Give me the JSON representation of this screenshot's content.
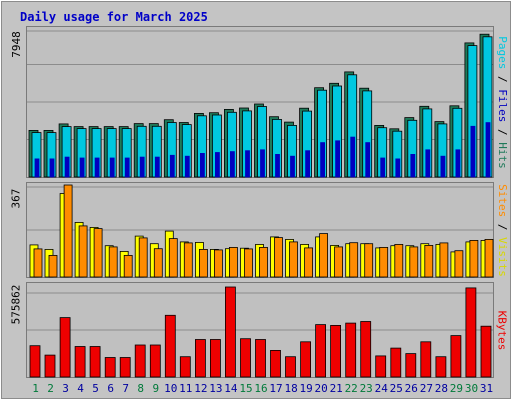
{
  "title": "Daily usage for March 2025",
  "panels": {
    "top": {
      "ymax_label": "7948",
      "legend": {
        "pages": "Pages",
        "sep1": " / ",
        "files": "Files",
        "sep2": " / ",
        "hits": "Hits"
      }
    },
    "mid": {
      "ymax_label": "367",
      "legend": {
        "sites": "Sites",
        "sep": " / ",
        "visits": "Visits"
      }
    },
    "bot": {
      "ymax_label": "575862",
      "legend": {
        "kbytes": "KBytes"
      }
    }
  },
  "colors": {
    "hits": "#1f7a5a",
    "files": "#00c8e0",
    "pages": "#0000c0",
    "visits": "#ffff00",
    "sites": "#ff8c00",
    "kbytes": "#ee0000",
    "weekday_label": "#0000a0",
    "weekend_label": "#007a3a",
    "legend_sep": "#000000",
    "grid": "#8c8c8c"
  },
  "chart_data": [
    {
      "type": "bar",
      "title": "Daily usage for March 2025",
      "categories": [
        "1",
        "2",
        "3",
        "4",
        "5",
        "6",
        "7",
        "8",
        "9",
        "10",
        "11",
        "12",
        "13",
        "14",
        "15",
        "16",
        "17",
        "18",
        "19",
        "20",
        "21",
        "22",
        "23",
        "24",
        "25",
        "26",
        "27",
        "28",
        "29",
        "30",
        "31"
      ],
      "weekend_days": [
        "1",
        "2",
        "8",
        "9",
        "15",
        "16",
        "22",
        "23",
        "29",
        "30"
      ],
      "ylim": [
        0,
        7948
      ],
      "series": [
        {
          "name": "Hits",
          "values": [
            2570,
            2570,
            2930,
            2780,
            2780,
            2780,
            2780,
            2950,
            2950,
            3160,
            3010,
            3510,
            3550,
            3730,
            3810,
            4030,
            3330,
            3030,
            3800,
            4930,
            5170,
            5800,
            4900,
            2850,
            2660,
            3280,
            3900,
            3060,
            3930,
            7400,
            7880
          ]
        },
        {
          "name": "Files",
          "values": [
            2450,
            2450,
            2780,
            2670,
            2670,
            2670,
            2670,
            2800,
            2800,
            3010,
            2890,
            3380,
            3420,
            3570,
            3650,
            3890,
            3180,
            2850,
            3640,
            4790,
            5020,
            5640,
            4750,
            2720,
            2530,
            3130,
            3760,
            2930,
            3790,
            7250,
            7740
          ]
        },
        {
          "name": "Pages",
          "values": [
            1000,
            1000,
            1100,
            1050,
            1050,
            1050,
            1050,
            1100,
            1100,
            1200,
            1150,
            1300,
            1350,
            1400,
            1450,
            1500,
            1250,
            1150,
            1450,
            1900,
            2000,
            2200,
            1900,
            1050,
            1000,
            1250,
            1500,
            1150,
            1500,
            2800,
            3000
          ]
        }
      ]
    },
    {
      "type": "bar",
      "categories": [
        "1",
        "2",
        "3",
        "4",
        "5",
        "6",
        "7",
        "8",
        "9",
        "10",
        "11",
        "12",
        "13",
        "14",
        "15",
        "16",
        "17",
        "18",
        "19",
        "20",
        "21",
        "22",
        "23",
        "24",
        "25",
        "26",
        "27",
        "28",
        "29",
        "30",
        "31"
      ],
      "ylim": [
        0,
        367
      ],
      "series": [
        {
          "name": "Visits",
          "values": [
            128,
            110,
            333,
            218,
            198,
            125,
            102,
            163,
            133,
            183,
            140,
            138,
            110,
            113,
            115,
            130,
            160,
            150,
            130,
            160,
            126,
            133,
            133,
            116,
            125,
            125,
            133,
            130,
            100,
            140,
            146
          ]
        },
        {
          "name": "Sites",
          "values": [
            112,
            86,
            367,
            204,
            193,
            120,
            86,
            156,
            113,
            153,
            136,
            110,
            108,
            118,
            112,
            118,
            157,
            140,
            116,
            173,
            120,
            137,
            133,
            118,
            130,
            120,
            126,
            136,
            105,
            146,
            150
          ]
        }
      ]
    },
    {
      "type": "bar",
      "categories": [
        "1",
        "2",
        "3",
        "4",
        "5",
        "6",
        "7",
        "8",
        "9",
        "10",
        "11",
        "12",
        "13",
        "14",
        "15",
        "16",
        "17",
        "18",
        "19",
        "20",
        "21",
        "22",
        "23",
        "24",
        "25",
        "26",
        "27",
        "28",
        "29",
        "30",
        "31"
      ],
      "ylim": [
        0,
        575862
      ],
      "series": [
        {
          "name": "KBytes",
          "values": [
            200000,
            140000,
            380000,
            195000,
            195000,
            125000,
            125000,
            205000,
            205000,
            395000,
            130000,
            240000,
            240000,
            575862,
            245000,
            240000,
            170000,
            130000,
            225000,
            335000,
            330000,
            345000,
            355000,
            135000,
            185000,
            150000,
            225000,
            130000,
            265000,
            570000,
            325000
          ]
        }
      ]
    }
  ]
}
